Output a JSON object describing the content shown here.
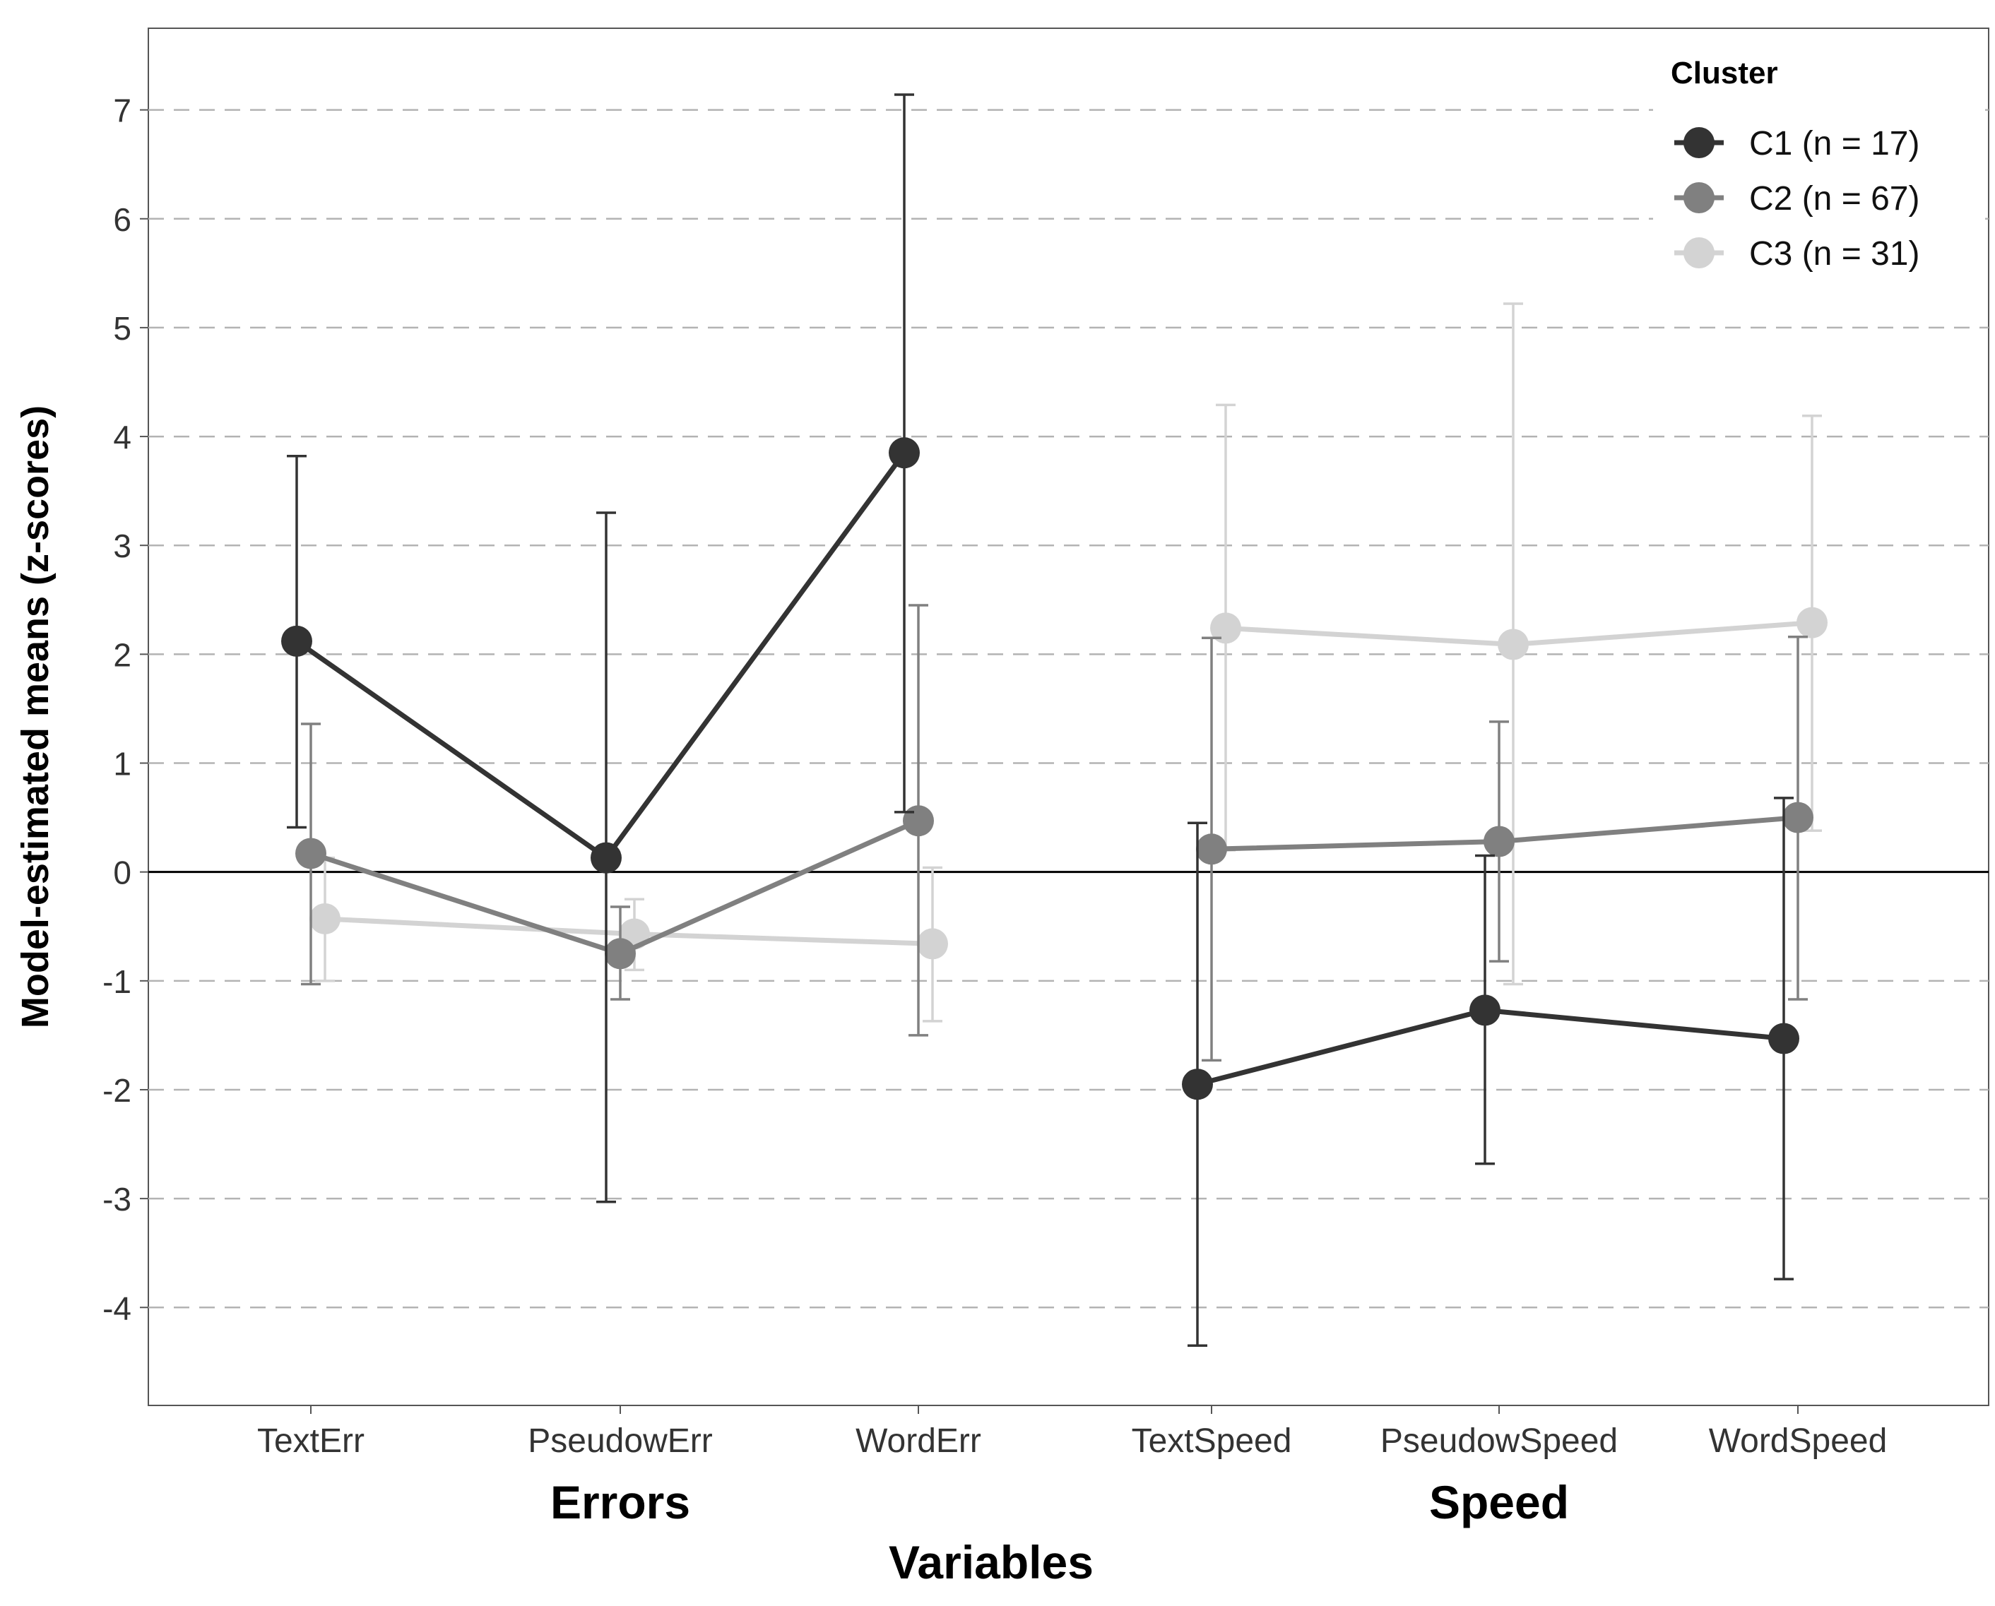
{
  "chart_data": {
    "type": "line",
    "title": "",
    "xlabel": "Variables",
    "ylabel": "Model-estimated means (z-scores)",
    "ylim": [
      -4.9,
      7.75
    ],
    "y_ticks": [
      -4,
      -3,
      -2,
      -1,
      0,
      1,
      2,
      3,
      4,
      5,
      6,
      7
    ],
    "y_tick_labels": [
      "-4",
      "-3",
      "-2",
      "-1",
      "0",
      "1",
      "2",
      "3",
      "4",
      "5",
      "6",
      "7"
    ],
    "grid": "horizontal dashed",
    "reference_line": 0,
    "categories": [
      "TextErr",
      "PseudowErr",
      "WordErr",
      "TextSpeed",
      "PseudowSpeed",
      "WordSpeed"
    ],
    "groups": [
      {
        "label": "Errors",
        "categories": [
          "TextErr",
          "PseudowErr",
          "WordErr"
        ]
      },
      {
        "label": "Speed",
        "categories": [
          "TextSpeed",
          "PseudowSpeed",
          "WordSpeed"
        ]
      }
    ],
    "legend": {
      "title": "Cluster",
      "position": "top-right"
    },
    "series": [
      {
        "name": "C1 (n = 17)",
        "color": "#333333",
        "values": [
          2.12,
          0.13,
          3.85,
          -1.95,
          -1.27,
          -1.53
        ],
        "ci_low": [
          0.41,
          -3.03,
          0.55,
          -4.35,
          -2.68,
          -3.74
        ],
        "ci_high": [
          3.82,
          3.3,
          7.14,
          0.45,
          0.15,
          0.68
        ]
      },
      {
        "name": "C2 (n = 67)",
        "color": "#808080",
        "values": [
          0.17,
          -0.75,
          0.47,
          0.21,
          0.28,
          0.5
        ],
        "ci_low": [
          -1.03,
          -1.17,
          -1.5,
          -1.73,
          -0.82,
          -1.17
        ],
        "ci_high": [
          1.36,
          -0.32,
          2.45,
          2.15,
          1.38,
          2.16
        ]
      },
      {
        "name": "C3 (n = 31)",
        "color": "#d3d3d3",
        "values": [
          -0.43,
          -0.57,
          -0.66,
          2.24,
          2.09,
          2.29
        ],
        "ci_low": [
          -1.0,
          -0.9,
          -1.37,
          0.2,
          -1.03,
          0.38
        ],
        "ci_high": [
          0.13,
          -0.25,
          0.04,
          4.29,
          5.22,
          4.19
        ]
      }
    ]
  }
}
